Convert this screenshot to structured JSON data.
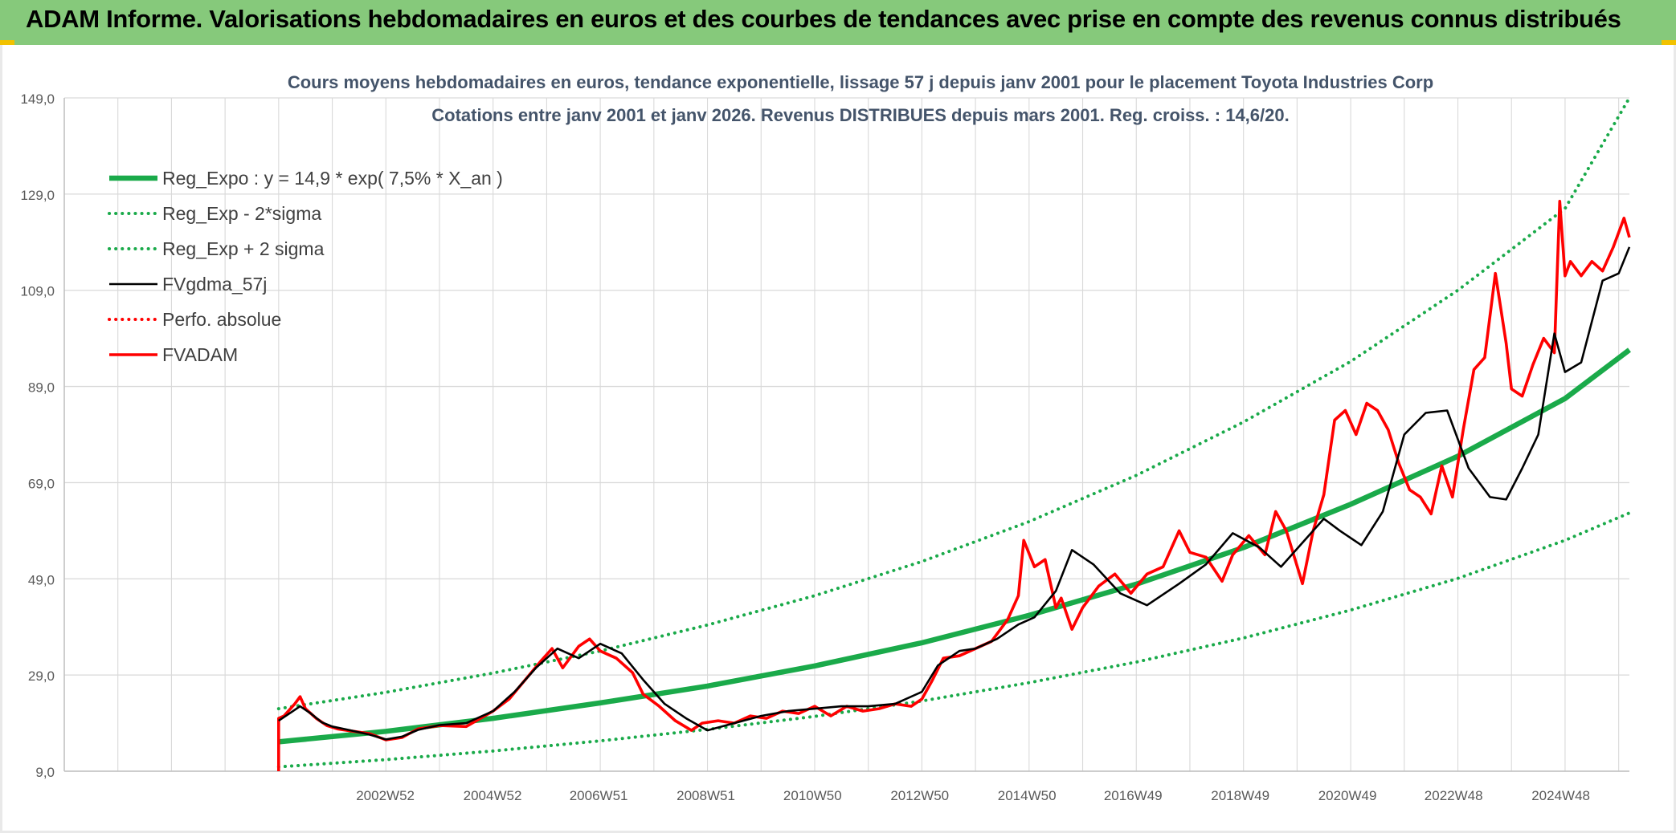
{
  "header": {
    "title": "ADAM Informe. Valorisations hebdomadaires en euros et des courbes de tendances avec prise en compte des revenus connus distribués"
  },
  "colors": {
    "header_bg": "#86c97b",
    "trend": "#1aaa4a",
    "smoothed": "#000000",
    "adam": "#ff0000",
    "grid": "#d9d9d9"
  },
  "chart_data": {
    "type": "line",
    "title": "Cours moyens hebdomadaires en euros, tendance exponentielle, lissage 57 j depuis janv 2001 pour le placement Toyota Industries Corp",
    "subtitle": "Cotations entre janv 2001 et janv 2026. Revenus DISTRIBUES depuis mars 2001. Reg. croiss. : 14,6/20.",
    "x_range": [
      1997.0,
      2026.2
    ],
    "ylim": [
      9.0,
      149.0
    ],
    "y_ticks": [
      "9,0",
      "29,0",
      "49,0",
      "69,0",
      "89,0",
      "109,0",
      "129,0",
      "149,0"
    ],
    "x_ticks": [
      {
        "label": "2002W52",
        "x": 2002.99
      },
      {
        "label": "2004W52",
        "x": 2004.99
      },
      {
        "label": "2006W51",
        "x": 2006.97
      },
      {
        "label": "2008W51",
        "x": 2008.97
      },
      {
        "label": "2010W50",
        "x": 2010.96
      },
      {
        "label": "2012W50",
        "x": 2012.96
      },
      {
        "label": "2014W50",
        "x": 2014.96
      },
      {
        "label": "2016W49",
        "x": 2016.94
      },
      {
        "label": "2018W49",
        "x": 2018.94
      },
      {
        "label": "2020W49",
        "x": 2020.94
      },
      {
        "label": "2022W48",
        "x": 2022.92
      },
      {
        "label": "2024W48",
        "x": 2024.92
      }
    ],
    "grid": true,
    "legend_position": "top-left",
    "series": [
      {
        "name": "Reg_Expo : y = 14,9 * exp( 7,5% *  X_an )",
        "style": "solid-thick",
        "color": "#1aaa4a",
        "x": [
          2001.0,
          2003.0,
          2005.0,
          2007.0,
          2009.0,
          2011.0,
          2013.0,
          2015.0,
          2017.0,
          2019.0,
          2021.0,
          2023.0,
          2025.0,
          2026.2
        ],
        "y": [
          15.1,
          17.3,
          20.0,
          23.2,
          26.7,
          30.9,
          35.7,
          41.4,
          47.9,
          55.5,
          64.5,
          74.5,
          86.5,
          96.6
        ]
      },
      {
        "name": "Reg_Exp - 2*sigma",
        "style": "dotted",
        "color": "#1aaa4a",
        "x": [
          2001.0,
          2003.0,
          2005.0,
          2007.0,
          2009.0,
          2011.0,
          2013.0,
          2015.0,
          2017.0,
          2019.0,
          2021.0,
          2023.0,
          2025.0,
          2026.2
        ],
        "y": [
          9.9,
          11.4,
          13.2,
          15.3,
          17.7,
          20.4,
          23.6,
          27.4,
          31.7,
          36.7,
          42.5,
          49.1,
          57.0,
          62.7
        ]
      },
      {
        "name": "Reg_Exp + 2 sigma",
        "style": "dotted",
        "color": "#1aaa4a",
        "x": [
          2001.0,
          2003.0,
          2005.0,
          2007.0,
          2009.0,
          2011.0,
          2013.0,
          2015.0,
          2017.0,
          2019.0,
          2021.0,
          2023.0,
          2025.0,
          2026.2
        ],
        "y": [
          22.0,
          25.4,
          29.4,
          34.0,
          39.4,
          45.5,
          52.6,
          60.9,
          70.5,
          81.6,
          94.2,
          109.0,
          126.0,
          149.0
        ]
      },
      {
        "name": "FVgdma_57j",
        "style": "solid",
        "color": "#000000",
        "x": [
          2001.0,
          2001.2,
          2001.4,
          2001.6,
          2001.8,
          2002.0,
          2002.3,
          2002.7,
          2003.0,
          2003.3,
          2003.6,
          2004.0,
          2004.5,
          2005.0,
          2005.4,
          2005.8,
          2006.2,
          2006.6,
          2007.0,
          2007.4,
          2007.8,
          2008.2,
          2008.6,
          2009.0,
          2009.5,
          2010.0,
          2010.5,
          2011.0,
          2011.5,
          2012.0,
          2012.5,
          2013.0,
          2013.3,
          2013.7,
          2014.0,
          2014.4,
          2014.8,
          2015.1,
          2015.5,
          2015.8,
          2016.2,
          2016.7,
          2017.2,
          2017.8,
          2018.3,
          2018.8,
          2019.3,
          2019.7,
          2020.1,
          2020.5,
          2020.8,
          2021.2,
          2021.6,
          2022.0,
          2022.4,
          2022.8,
          2023.2,
          2023.6,
          2023.9,
          2024.2,
          2024.5,
          2024.8,
          2025.0,
          2025.3,
          2025.7,
          2026.0,
          2026.2
        ],
        "y": [
          19.5,
          21.0,
          22.5,
          21.0,
          19.2,
          18.3,
          17.6,
          16.6,
          15.6,
          16.2,
          17.6,
          18.6,
          19.0,
          21.5,
          25.5,
          30.5,
          34.5,
          32.5,
          35.5,
          33.5,
          28.0,
          23.0,
          20.0,
          17.5,
          19.0,
          20.5,
          21.5,
          22.0,
          22.5,
          22.5,
          23.0,
          25.5,
          31.0,
          34.0,
          34.5,
          36.5,
          39.5,
          41.0,
          46.5,
          55.0,
          52.0,
          46.0,
          43.5,
          48.0,
          52.0,
          58.5,
          55.5,
          51.5,
          56.5,
          61.5,
          59.0,
          56.0,
          63.0,
          79.0,
          83.5,
          84.0,
          72.0,
          66.0,
          65.5,
          72.0,
          79.0,
          100.0,
          92.0,
          94.0,
          111.0,
          112.5,
          118.0
        ]
      },
      {
        "name": "Perfo. absolue",
        "style": "dotted",
        "color": "#ff0000",
        "x": [],
        "y": []
      },
      {
        "name": "FVADAM",
        "style": "solid-thick",
        "color": "#ff0000",
        "x": [
          2001.0,
          2001.0,
          2001.1,
          2001.3,
          2001.4,
          2001.5,
          2001.7,
          2001.9,
          2002.1,
          2002.4,
          2002.7,
          2003.0,
          2003.3,
          2003.6,
          2004.0,
          2004.5,
          2005.0,
          2005.3,
          2005.6,
          2005.9,
          2006.1,
          2006.3,
          2006.6,
          2006.8,
          2007.0,
          2007.3,
          2007.6,
          2007.8,
          2008.1,
          2008.4,
          2008.7,
          2008.9,
          2009.2,
          2009.5,
          2009.8,
          2010.1,
          2010.4,
          2010.7,
          2011.0,
          2011.3,
          2011.6,
          2011.9,
          2012.2,
          2012.5,
          2012.8,
          2013.0,
          2013.2,
          2013.4,
          2013.7,
          2014.0,
          2014.3,
          2014.6,
          2014.8,
          2014.9,
          2015.1,
          2015.3,
          2015.5,
          2015.6,
          2015.8,
          2016.0,
          2016.3,
          2016.6,
          2016.9,
          2017.2,
          2017.5,
          2017.8,
          2018.0,
          2018.3,
          2018.6,
          2018.8,
          2019.1,
          2019.4,
          2019.6,
          2019.8,
          2020.1,
          2020.3,
          2020.5,
          2020.7,
          2020.9,
          2021.1,
          2021.3,
          2021.5,
          2021.7,
          2021.9,
          2022.1,
          2022.3,
          2022.5,
          2022.7,
          2022.9,
          2023.1,
          2023.3,
          2023.5,
          2023.7,
          2023.9,
          2024.0,
          2024.2,
          2024.4,
          2024.6,
          2024.8,
          2024.9,
          2025.0,
          2025.1,
          2025.3,
          2025.5,
          2025.7,
          2025.9,
          2026.1,
          2026.2
        ],
        "y": [
          9.0,
          20.0,
          20.5,
          23.0,
          24.5,
          22.0,
          20.0,
          18.5,
          17.8,
          17.3,
          16.8,
          15.5,
          16.0,
          17.8,
          18.5,
          18.3,
          21.5,
          24.0,
          28.0,
          32.0,
          34.5,
          30.5,
          35.0,
          36.5,
          34.0,
          32.5,
          29.5,
          25.0,
          22.5,
          19.5,
          17.5,
          19.0,
          19.5,
          19.0,
          20.5,
          20.0,
          21.5,
          21.0,
          22.5,
          20.5,
          22.5,
          21.5,
          22.0,
          23.0,
          22.5,
          24.0,
          28.0,
          32.5,
          33.0,
          34.5,
          36.0,
          40.5,
          45.5,
          57.0,
          51.5,
          53.0,
          43.0,
          45.0,
          38.5,
          43.0,
          47.5,
          50.0,
          46.0,
          50.0,
          51.5,
          59.0,
          54.5,
          53.5,
          48.5,
          54.0,
          58.0,
          54.0,
          63.0,
          59.0,
          48.0,
          59.0,
          66.5,
          82.0,
          84.0,
          79.0,
          85.5,
          84.0,
          80.0,
          73.0,
          67.5,
          66.0,
          62.5,
          72.5,
          66.0,
          80.0,
          92.5,
          95.0,
          112.5,
          98.0,
          88.5,
          87.0,
          93.5,
          99.0,
          96.0,
          127.5,
          112.0,
          115.0,
          112.0,
          115.0,
          113.0,
          118.0,
          124.0,
          120.0
        ]
      }
    ]
  }
}
